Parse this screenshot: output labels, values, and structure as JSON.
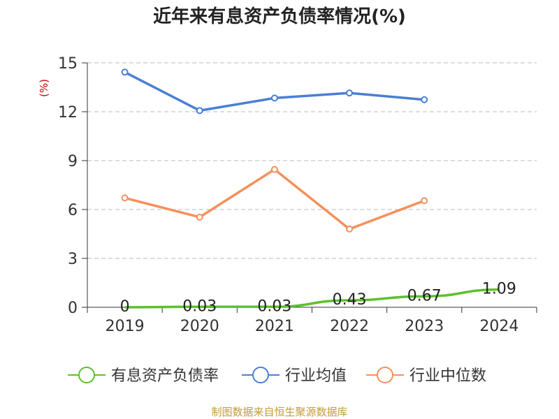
{
  "chart_data": {
    "type": "line",
    "title": "近年来有息资产负债率情况(%)",
    "ylabel": "(%)",
    "ylabel_color": "#cc0000",
    "categories": [
      "2019",
      "2020",
      "2021",
      "2022",
      "2023",
      "2024"
    ],
    "ylim": [
      0,
      15
    ],
    "yticks": [
      0,
      3,
      6,
      9,
      12,
      15
    ],
    "ytick_labels": [
      "0",
      "3",
      "6",
      "9",
      "12",
      "15"
    ],
    "grid": "horizontal dashed",
    "legend_position": "bottom",
    "series": [
      {
        "name": "有息资产负债率",
        "color": "#5cc12d",
        "values": [
          0,
          0.03,
          0.03,
          0.43,
          0.67,
          1.09
        ],
        "labels": [
          "0",
          "0.03",
          "0.03",
          "0.43",
          "0.67",
          "1.09"
        ],
        "markers": false,
        "smooth": true
      },
      {
        "name": "行业均值",
        "color": "#4a7fd6",
        "values": [
          14.43,
          12.07,
          12.84,
          13.15,
          12.74,
          null
        ],
        "markers": true
      },
      {
        "name": "行业中位数",
        "color": "#f5905a",
        "values": [
          6.71,
          5.53,
          8.46,
          4.8,
          6.54,
          null
        ],
        "markers": true
      }
    ]
  },
  "source": {
    "text": "制图数据来自恒生聚源数据库",
    "color": "#c49a3a"
  }
}
